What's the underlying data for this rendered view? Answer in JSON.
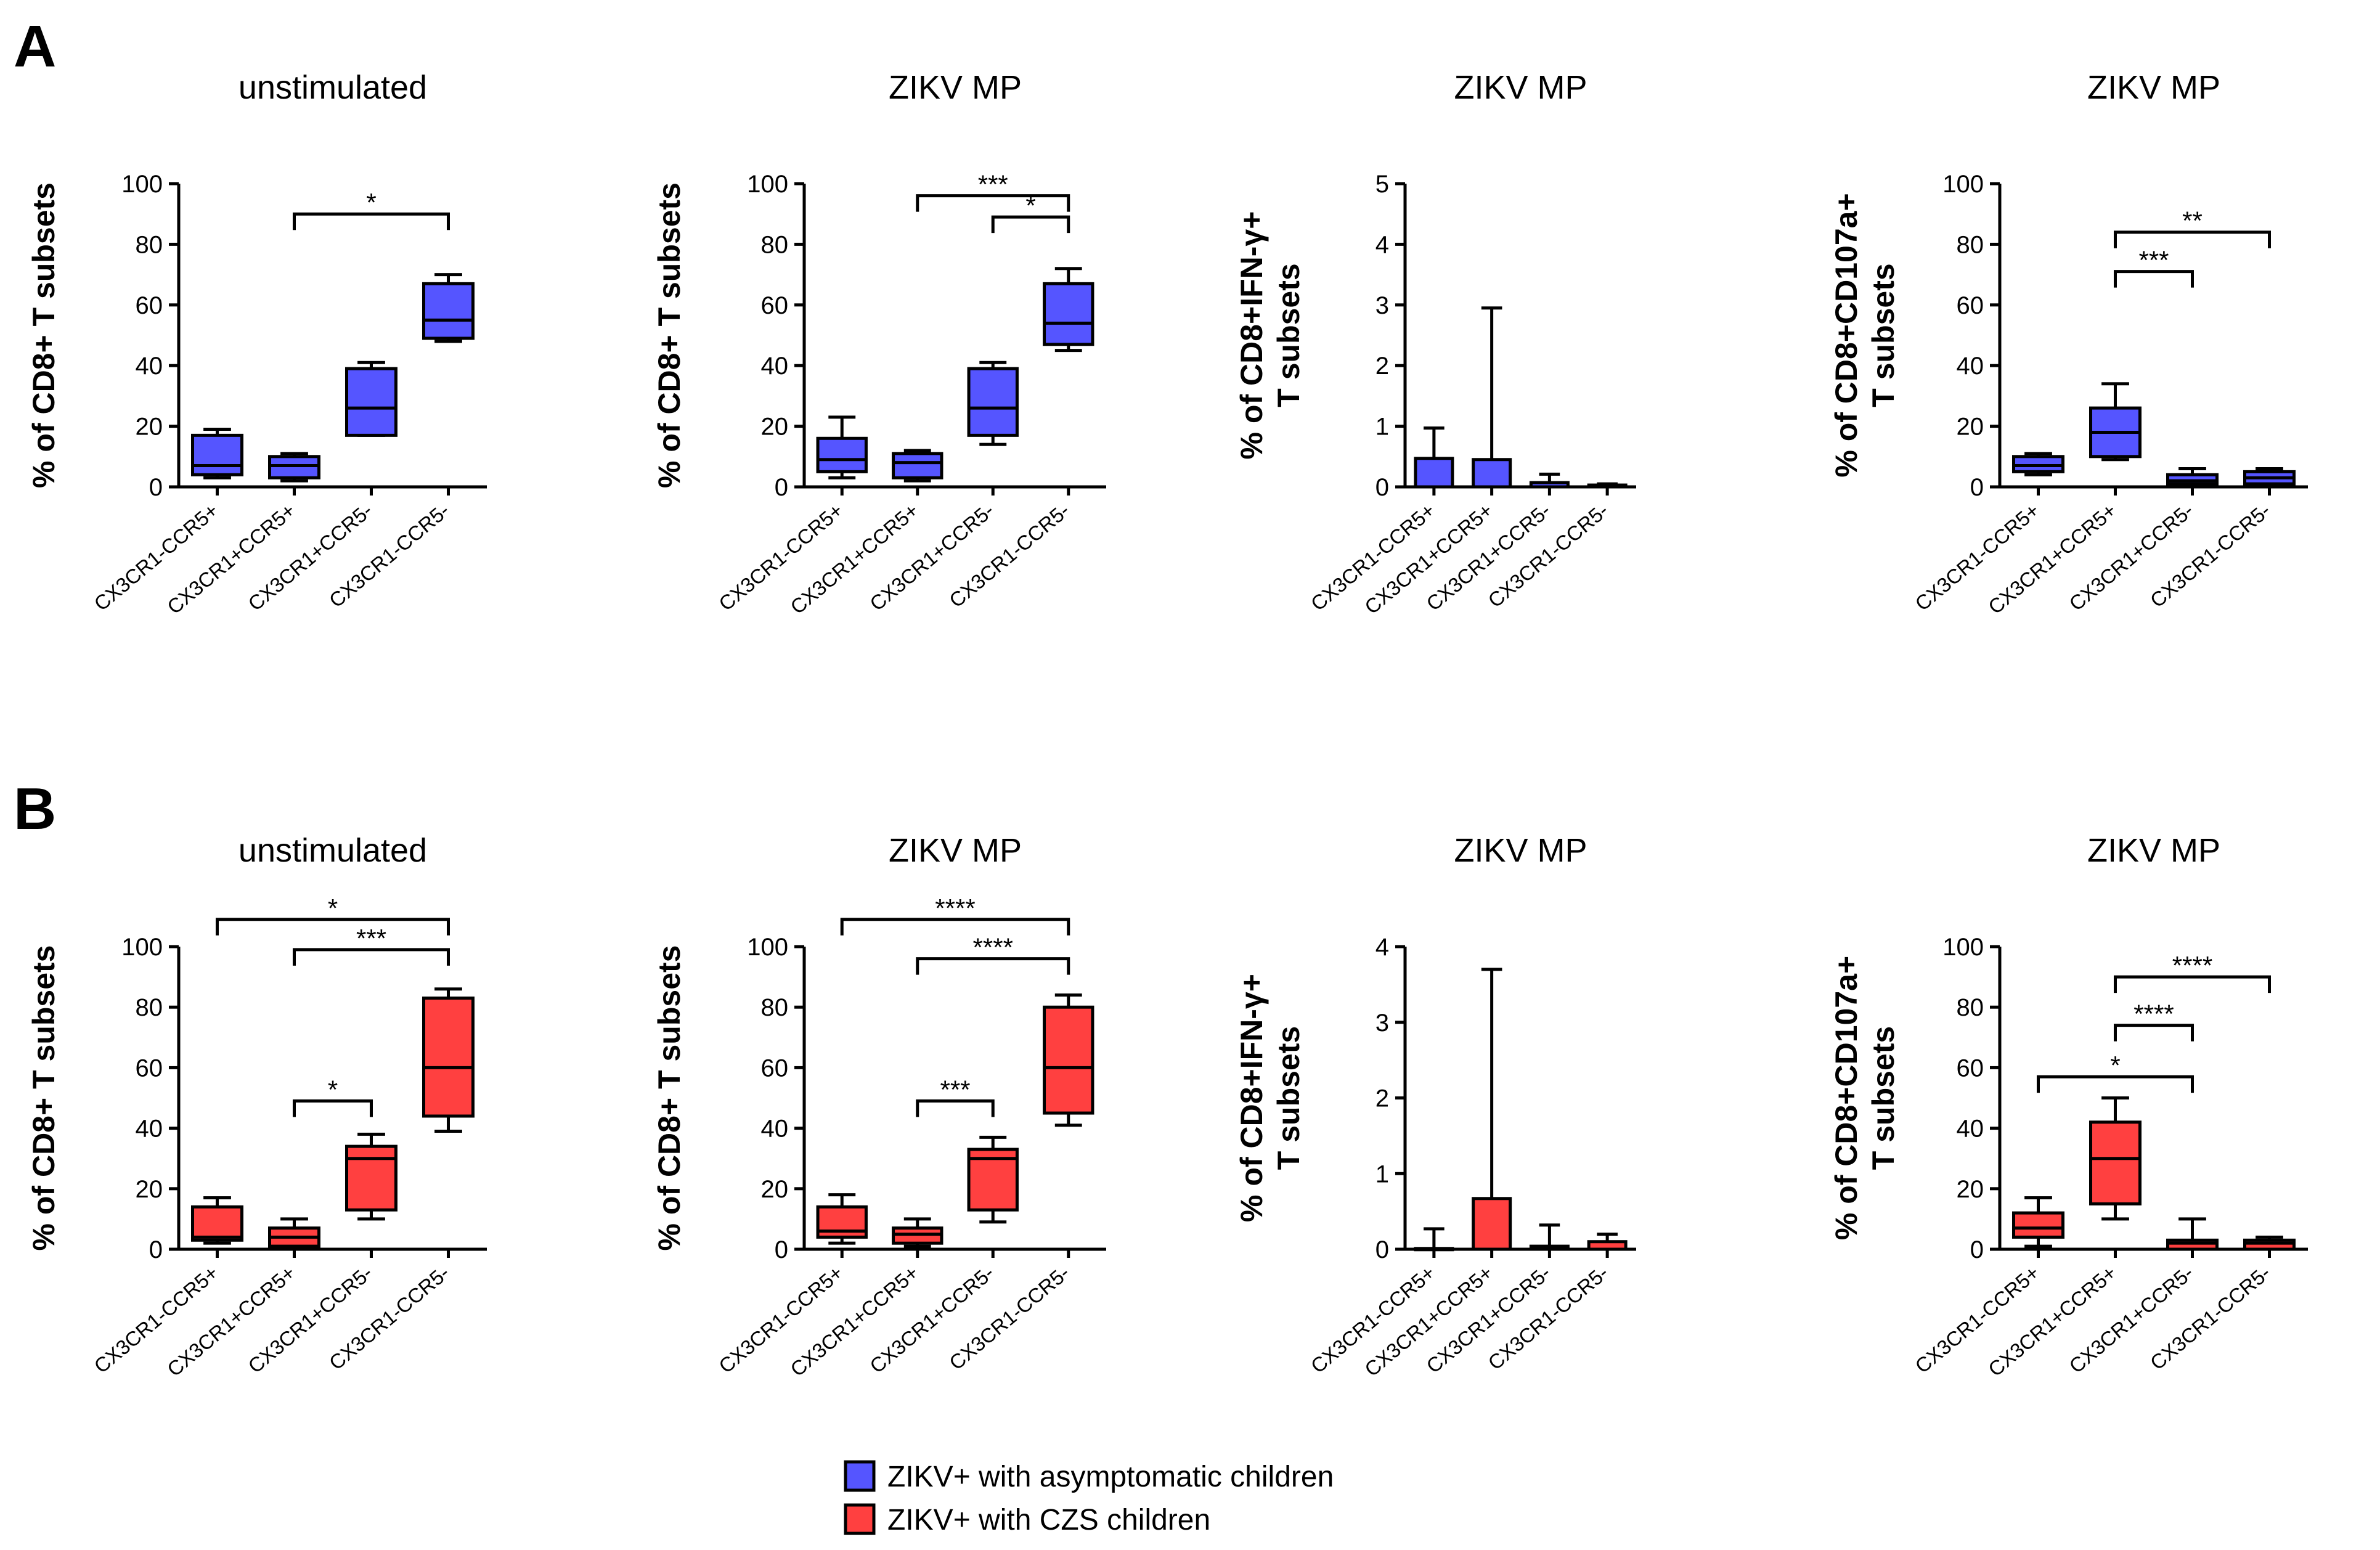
{
  "panels": [
    {
      "letter": "A"
    },
    {
      "letter": "B"
    }
  ],
  "legend": [
    {
      "label": "ZIKV+ with asymptomatic children",
      "color": "#5555ff"
    },
    {
      "label": "ZIKV+ with CZS children",
      "color": "#ff4040"
    }
  ],
  "chart_data": [
    {
      "type": "box",
      "row": "A",
      "title": "unstimulated",
      "ylabel": [
        "% of CD8+ T subsets"
      ],
      "ylim": [
        0,
        100
      ],
      "yticks": [
        0,
        20,
        40,
        60,
        80,
        100
      ],
      "color": "#5555ff",
      "categories": [
        "CX3CR1-CCR5+",
        "CX3CR1+CCR5+",
        "CX3CR1+CCR5-",
        "CX3CR1-CCR5-"
      ],
      "boxes": [
        {
          "min": 3,
          "q1": 4,
          "median": 7,
          "q3": 17,
          "max": 19
        },
        {
          "min": 2,
          "q1": 3,
          "median": 7,
          "q3": 10,
          "max": 11
        },
        {
          "min": 17,
          "q1": 17,
          "median": 26,
          "q3": 39,
          "max": 41
        },
        {
          "min": 48,
          "q1": 49,
          "median": 55,
          "q3": 67,
          "max": 70
        }
      ],
      "significance": [
        {
          "from": 1,
          "to": 3,
          "y": 90,
          "label": "*"
        }
      ]
    },
    {
      "type": "box",
      "row": "A",
      "title": "ZIKV MP",
      "ylabel": [
        "% of CD8+ T subsets"
      ],
      "ylim": [
        0,
        100
      ],
      "yticks": [
        0,
        20,
        40,
        60,
        80,
        100
      ],
      "color": "#5555ff",
      "categories": [
        "CX3CR1-CCR5+",
        "CX3CR1+CCR5+",
        "CX3CR1+CCR5-",
        "CX3CR1-CCR5-"
      ],
      "boxes": [
        {
          "min": 3,
          "q1": 5,
          "median": 9,
          "q3": 16,
          "max": 23
        },
        {
          "min": 2,
          "q1": 3,
          "median": 8,
          "q3": 11,
          "max": 12
        },
        {
          "min": 14,
          "q1": 17,
          "median": 26,
          "q3": 39,
          "max": 41
        },
        {
          "min": 45,
          "q1": 47,
          "median": 54,
          "q3": 67,
          "max": 72
        }
      ],
      "significance": [
        {
          "from": 1,
          "to": 3,
          "y": 96,
          "label": "***"
        },
        {
          "from": 2,
          "to": 3,
          "y": 89,
          "label": "*"
        }
      ]
    },
    {
      "type": "bar",
      "row": "A",
      "title": "ZIKV MP",
      "ylabel": [
        "% of CD8+IFN-γ+",
        "T subsets"
      ],
      "ylim": [
        0,
        5
      ],
      "yticks": [
        0,
        1,
        2,
        3,
        4,
        5
      ],
      "color": "#5555ff",
      "categories": [
        "CX3CR1-CCR5+",
        "CX3CR1+CCR5+",
        "CX3CR1+CCR5-",
        "CX3CR1-CCR5-"
      ],
      "bars": [
        {
          "value": 0.47,
          "error": 0.97
        },
        {
          "value": 0.45,
          "error": 2.95
        },
        {
          "value": 0.07,
          "error": 0.21
        },
        {
          "value": 0.03,
          "error": 0.05
        }
      ],
      "significance": []
    },
    {
      "type": "box",
      "row": "A",
      "title": "ZIKV MP",
      "ylabel": [
        "% of CD8+CD107a+",
        "T subsets"
      ],
      "ylim": [
        0,
        100
      ],
      "yticks": [
        0,
        20,
        40,
        60,
        80,
        100
      ],
      "color": "#5555ff",
      "categories": [
        "CX3CR1-CCR5+",
        "CX3CR1+CCR5+",
        "CX3CR1+CCR5-",
        "CX3CR1-CCR5-"
      ],
      "boxes": [
        {
          "min": 4,
          "q1": 5,
          "median": 7,
          "q3": 10,
          "max": 11
        },
        {
          "min": 9,
          "q1": 10,
          "median": 18,
          "q3": 26,
          "max": 34
        },
        {
          "min": 0,
          "q1": 1,
          "median": 2,
          "q3": 4,
          "max": 6
        },
        {
          "min": 0,
          "q1": 1,
          "median": 3,
          "q3": 5,
          "max": 6
        }
      ],
      "significance": [
        {
          "from": 1,
          "to": 3,
          "y": 84,
          "label": "**"
        },
        {
          "from": 1,
          "to": 2,
          "y": 71,
          "label": "***"
        }
      ]
    },
    {
      "type": "box",
      "row": "B",
      "title": "unstimulated",
      "ylabel": [
        "% of CD8+ T subsets"
      ],
      "ylim": [
        0,
        100
      ],
      "yticks": [
        0,
        20,
        40,
        60,
        80,
        100
      ],
      "color": "#ff4040",
      "categories": [
        "CX3CR1-CCR5+",
        "CX3CR1+CCR5+",
        "CX3CR1+CCR5-",
        "CX3CR1-CCR5-"
      ],
      "boxes": [
        {
          "min": 2,
          "q1": 3,
          "median": 4,
          "q3": 14,
          "max": 17
        },
        {
          "min": 0,
          "q1": 1,
          "median": 4,
          "q3": 7,
          "max": 10
        },
        {
          "min": 10,
          "q1": 13,
          "median": 30,
          "q3": 34,
          "max": 38
        },
        {
          "min": 39,
          "q1": 44,
          "median": 60,
          "q3": 83,
          "max": 86
        }
      ],
      "significance": [
        {
          "from": 0,
          "to": 3,
          "y": 109,
          "label": "*"
        },
        {
          "from": 1,
          "to": 3,
          "y": 99,
          "label": "***"
        },
        {
          "from": 1,
          "to": 2,
          "y": 49,
          "label": "*"
        }
      ]
    },
    {
      "type": "box",
      "row": "B",
      "title": "ZIKV MP",
      "ylabel": [
        "% of CD8+ T subsets"
      ],
      "ylim": [
        0,
        100
      ],
      "yticks": [
        0,
        20,
        40,
        60,
        80,
        100
      ],
      "color": "#ff4040",
      "categories": [
        "CX3CR1-CCR5+",
        "CX3CR1+CCR5+",
        "CX3CR1+CCR5-",
        "CX3CR1-CCR5-"
      ],
      "boxes": [
        {
          "min": 2,
          "q1": 4,
          "median": 6,
          "q3": 14,
          "max": 18
        },
        {
          "min": 1,
          "q1": 2,
          "median": 5,
          "q3": 7,
          "max": 10
        },
        {
          "min": 9,
          "q1": 13,
          "median": 30,
          "q3": 33,
          "max": 37
        },
        {
          "min": 41,
          "q1": 45,
          "median": 60,
          "q3": 80,
          "max": 84
        }
      ],
      "significance": [
        {
          "from": 0,
          "to": 3,
          "y": 109,
          "label": "****"
        },
        {
          "from": 1,
          "to": 3,
          "y": 96,
          "label": "****"
        },
        {
          "from": 1,
          "to": 2,
          "y": 49,
          "label": "***"
        }
      ]
    },
    {
      "type": "bar",
      "row": "B",
      "title": "ZIKV MP",
      "ylabel": [
        "% of CD8+IFN-γ+",
        "T subsets"
      ],
      "ylim": [
        0,
        4
      ],
      "yticks": [
        0,
        1,
        2,
        3,
        4
      ],
      "color": "#ff4040",
      "categories": [
        "CX3CR1-CCR5+",
        "CX3CR1+CCR5+",
        "CX3CR1+CCR5-",
        "CX3CR1-CCR5-"
      ],
      "bars": [
        {
          "value": 0.01,
          "error": 0.27
        },
        {
          "value": 0.67,
          "error": 3.7
        },
        {
          "value": 0.04,
          "error": 0.32
        },
        {
          "value": 0.1,
          "error": 0.2
        }
      ],
      "significance": []
    },
    {
      "type": "box",
      "row": "B",
      "title": "ZIKV MP",
      "ylabel": [
        "% of CD8+CD107a+",
        "T subsets"
      ],
      "ylim": [
        0,
        100
      ],
      "yticks": [
        0,
        20,
        40,
        60,
        80,
        100
      ],
      "color": "#ff4040",
      "categories": [
        "CX3CR1-CCR5+",
        "CX3CR1+CCR5+",
        "CX3CR1+CCR5-",
        "CX3CR1-CCR5-"
      ],
      "boxes": [
        {
          "min": 1,
          "q1": 4,
          "median": 7,
          "q3": 12,
          "max": 17
        },
        {
          "min": 10,
          "q1": 15,
          "median": 30,
          "q3": 42,
          "max": 50
        },
        {
          "min": 0,
          "q1": 0,
          "median": 2,
          "q3": 3,
          "max": 10
        },
        {
          "min": 0,
          "q1": 0,
          "median": 2,
          "q3": 3,
          "max": 4
        }
      ],
      "significance": [
        {
          "from": 1,
          "to": 3,
          "y": 90,
          "label": "****"
        },
        {
          "from": 1,
          "to": 2,
          "y": 74,
          "label": "****"
        },
        {
          "from": 0,
          "to": 2,
          "y": 57,
          "label": "*"
        }
      ]
    }
  ]
}
